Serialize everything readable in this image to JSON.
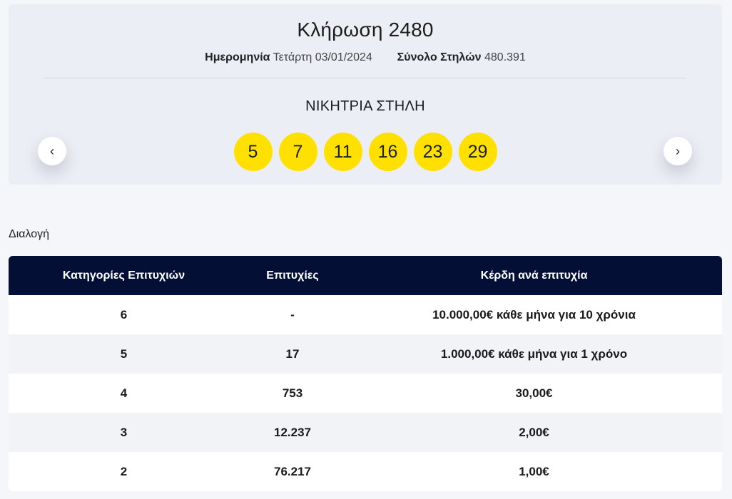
{
  "draw": {
    "title": "Κλήρωση 2480",
    "date_label": "Ημερομηνία",
    "date_value": "Τετάρτη 03/01/2024",
    "columns_label": "Σύνολο Στηλών",
    "columns_value": "480.391",
    "winning_label": "ΝΙΚΗΤΡΙΑ ΣΤΗΛΗ",
    "numbers": [
      "5",
      "7",
      "11",
      "16",
      "23",
      "29"
    ],
    "prev_icon": "‹",
    "next_icon": "›",
    "ball_color": "#ffe000"
  },
  "section": {
    "label": "Διαλογή"
  },
  "table": {
    "headers": [
      "Κατηγορίες Επιτυχιών",
      "Επιτυχίες",
      "Κέρδη ανά επιτυχία"
    ],
    "header_color": "#040f36",
    "rows": [
      {
        "category": "6",
        "winners": "-",
        "prize": "10.000,00€ κάθε μήνα για 10 χρόνια"
      },
      {
        "category": "5",
        "winners": "17",
        "prize": "1.000,00€ κάθε μήνα για 1 χρόνο"
      },
      {
        "category": "4",
        "winners": "753",
        "prize": "30,00€"
      },
      {
        "category": "3",
        "winners": "12.237",
        "prize": "2,00€"
      },
      {
        "category": "2",
        "winners": "76.217",
        "prize": "1,00€"
      }
    ]
  }
}
